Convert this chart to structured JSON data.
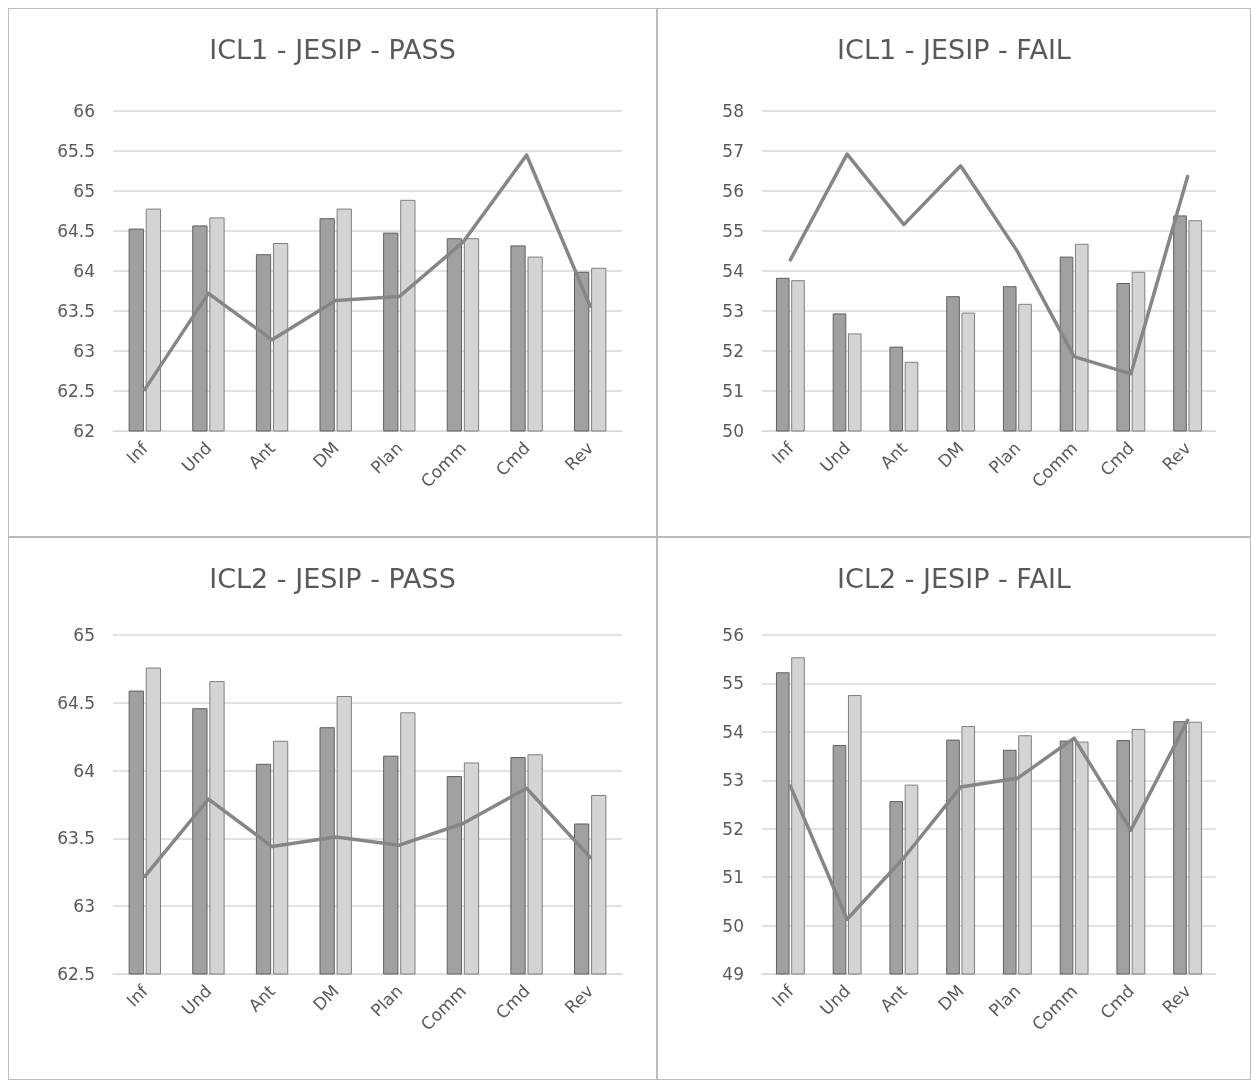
{
  "chart_data": [
    {
      "type": "bar",
      "title": "ICL1 - JESIP - PASS",
      "categories": [
        "Inf",
        "Und",
        "Ant",
        "DM",
        "Plan",
        "Comm",
        "Cmd",
        "Rev"
      ],
      "ylim": [
        62,
        66
      ],
      "yticks": [
        62,
        62.5,
        63,
        63.5,
        64,
        64.5,
        65,
        65.5,
        66
      ],
      "grid": "y",
      "marker": "none",
      "line_style": "solid",
      "series": [
        {
          "color": "#a0a0a0",
          "values": [
            64.53,
            64.57,
            64.21,
            64.66,
            64.48,
            64.41,
            64.32,
            63.99
          ]
        },
        {
          "color": "#d4d4d4",
          "values": [
            64.78,
            64.67,
            64.35,
            64.78,
            64.89,
            64.41,
            64.18,
            64.04
          ]
        },
        {
          "type": "line",
          "color": "#868686",
          "values": [
            62.52,
            63.72,
            63.14,
            63.63,
            63.68,
            64.36,
            65.45,
            63.56
          ]
        }
      ]
    },
    {
      "type": "bar",
      "title": "ICL1 - JESIP - FAIL",
      "categories": [
        "Inf",
        "Und",
        "Ant",
        "DM",
        "Plan",
        "Comm",
        "Cmd",
        "Rev"
      ],
      "ylim": [
        50,
        58
      ],
      "yticks": [
        50,
        51,
        52,
        53,
        54,
        55,
        56,
        57,
        58
      ],
      "grid": "y",
      "marker": "none",
      "line_style": "solid",
      "series": [
        {
          "color": "#a0a0a0",
          "values": [
            53.83,
            52.94,
            52.11,
            53.37,
            53.62,
            54.36,
            53.7,
            55.39
          ]
        },
        {
          "color": "#d4d4d4",
          "values": [
            53.77,
            52.44,
            51.73,
            52.96,
            53.18,
            54.68,
            53.98,
            55.27
          ]
        },
        {
          "type": "line",
          "color": "#868686",
          "values": [
            54.28,
            56.92,
            55.16,
            56.63,
            54.49,
            51.86,
            51.43,
            56.36
          ]
        }
      ]
    },
    {
      "type": "bar",
      "title": "ICL2 - JESIP - PASS",
      "categories": [
        "Inf",
        "Und",
        "Ant",
        "DM",
        "Plan",
        "Comm",
        "Cmd",
        "Rev"
      ],
      "ylim": [
        62.5,
        65
      ],
      "yticks": [
        62.5,
        63,
        63.5,
        64,
        64.5,
        65
      ],
      "grid": "y",
      "marker": "none",
      "line_style": "solid",
      "series": [
        {
          "color": "#a0a0a0",
          "values": [
            64.59,
            64.46,
            64.05,
            64.32,
            64.11,
            63.96,
            64.1,
            63.61
          ]
        },
        {
          "color": "#d4d4d4",
          "values": [
            64.76,
            64.66,
            64.22,
            64.55,
            64.43,
            64.06,
            64.12,
            63.82
          ]
        },
        {
          "type": "line",
          "color": "#868686",
          "values": [
            63.22,
            63.79,
            63.44,
            63.51,
            63.45,
            63.61,
            63.87,
            63.36
          ]
        }
      ]
    },
    {
      "type": "bar",
      "title": "ICL2 - JESIP - FAIL",
      "categories": [
        "Inf",
        "Und",
        "Ant",
        "DM",
        "Plan",
        "Comm",
        "Cmd",
        "Rev"
      ],
      "ylim": [
        49,
        56
      ],
      "yticks": [
        49,
        50,
        51,
        52,
        53,
        54,
        55,
        56
      ],
      "grid": "y",
      "marker": "none",
      "line_style": "solid",
      "series": [
        {
          "color": "#a0a0a0",
          "values": [
            55.23,
            53.73,
            52.57,
            53.84,
            53.63,
            53.82,
            53.83,
            54.22
          ]
        },
        {
          "color": "#d4d4d4",
          "values": [
            55.54,
            54.76,
            52.91,
            54.12,
            53.93,
            53.8,
            54.06,
            54.21
          ]
        },
        {
          "type": "line",
          "color": "#868686",
          "values": [
            52.88,
            50.13,
            51.4,
            52.86,
            53.04,
            53.87,
            51.97,
            54.24
          ]
        }
      ]
    }
  ]
}
